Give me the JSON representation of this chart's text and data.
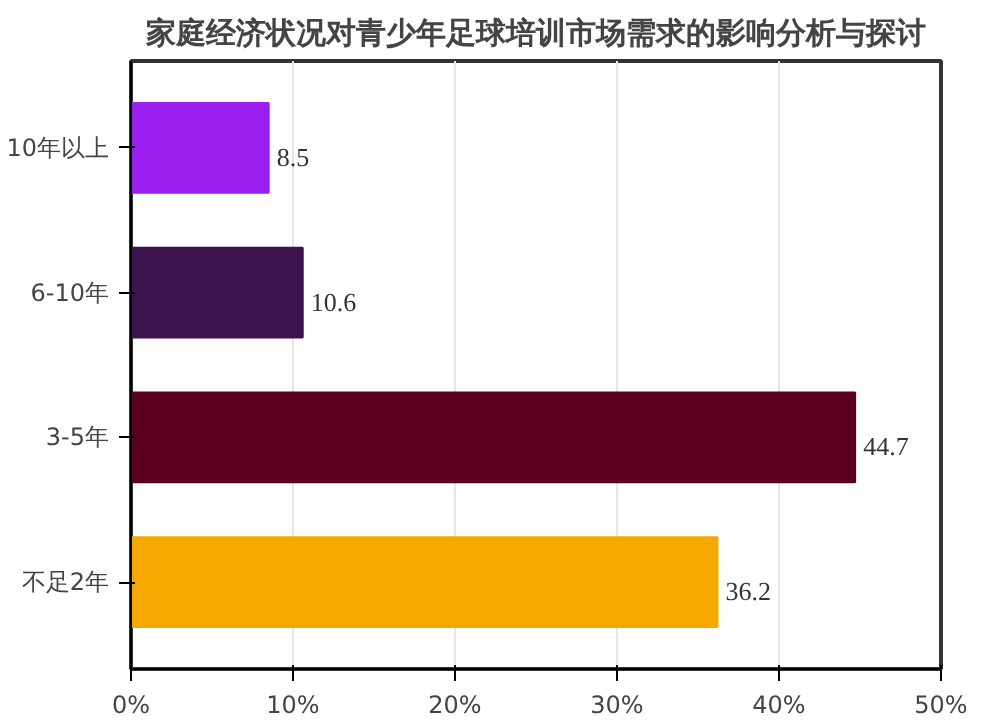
{
  "chart_data": {
    "type": "bar",
    "orientation": "horizontal",
    "title": "家庭经济状况对青少年足球培训市场需求的影响分析与探讨",
    "categories": [
      "10年以上",
      "6-10年",
      "3-5年",
      "不足2年"
    ],
    "values": [
      8.5,
      10.6,
      44.7,
      36.2
    ],
    "colors": [
      "#9b1ff0",
      "#3d1450",
      "#5c0020",
      "#f5a800"
    ],
    "xlim": [
      0,
      50
    ],
    "xticks": [
      {
        "value": 0,
        "label": "0%"
      },
      {
        "value": 10,
        "label": "10%"
      },
      {
        "value": 20,
        "label": "20%"
      },
      {
        "value": 30,
        "label": "30%"
      },
      {
        "value": 40,
        "label": "40%"
      },
      {
        "value": 50,
        "label": "50%"
      }
    ],
    "grid": "x",
    "data_labels": true
  }
}
